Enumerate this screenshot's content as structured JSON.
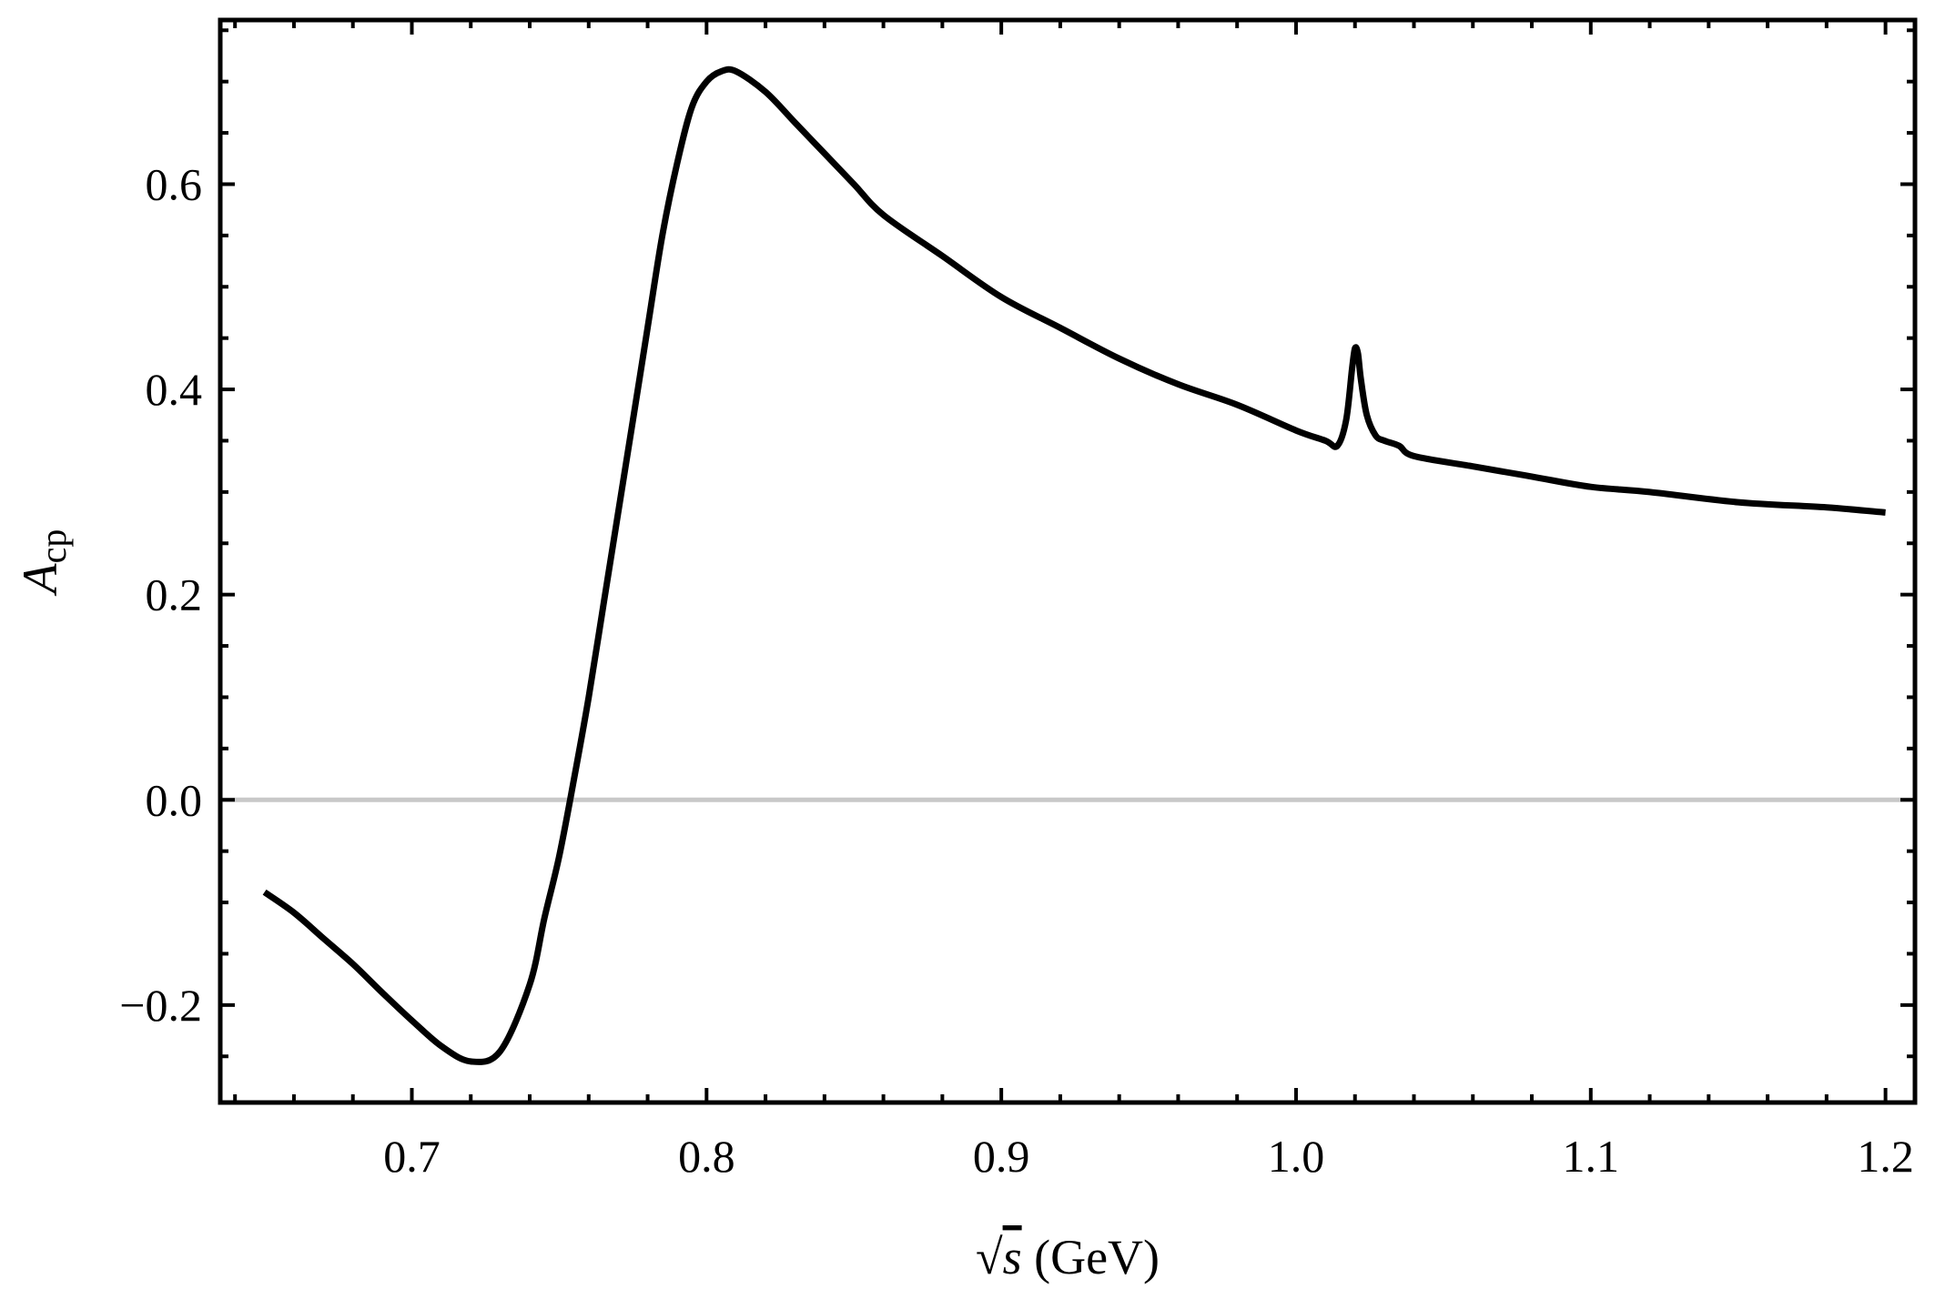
{
  "chart_data": {
    "type": "line",
    "title": "",
    "xlabel": {
      "radical": "√",
      "var": "s",
      "unit": " (GeV)"
    },
    "ylabel": {
      "main": "A",
      "sub": "cp"
    },
    "xlim": [
      0.635,
      1.21
    ],
    "ylim": [
      -0.295,
      0.76
    ],
    "xticks": [
      {
        "value": 0.7,
        "label": "0.7"
      },
      {
        "value": 0.8,
        "label": "0.8"
      },
      {
        "value": 0.9,
        "label": "0.9"
      },
      {
        "value": 1.0,
        "label": "1.0"
      },
      {
        "value": 1.1,
        "label": "1.1"
      },
      {
        "value": 1.2,
        "label": "1.2"
      }
    ],
    "yticks": [
      {
        "value": -0.2,
        "label": "−0.2"
      },
      {
        "value": 0.0,
        "label": "0.0"
      },
      {
        "value": 0.2,
        "label": "0.2"
      },
      {
        "value": 0.4,
        "label": "0.4"
      },
      {
        "value": 0.6,
        "label": "0.6"
      }
    ],
    "grid": false,
    "zero_line": true,
    "series": [
      {
        "color": "#000000",
        "x": [
          0.65,
          0.66,
          0.67,
          0.68,
          0.69,
          0.7,
          0.71,
          0.72,
          0.73,
          0.74,
          0.745,
          0.75,
          0.755,
          0.76,
          0.765,
          0.77,
          0.775,
          0.78,
          0.785,
          0.79,
          0.795,
          0.8,
          0.805,
          0.81,
          0.82,
          0.83,
          0.84,
          0.85,
          0.86,
          0.88,
          0.9,
          0.92,
          0.94,
          0.96,
          0.98,
          1.0,
          1.01,
          1.014,
          1.017,
          1.019,
          1.02,
          1.021,
          1.022,
          1.024,
          1.027,
          1.03,
          1.035,
          1.04,
          1.06,
          1.08,
          1.1,
          1.12,
          1.15,
          1.18,
          1.2
        ],
        "y": [
          -0.09,
          -0.11,
          -0.135,
          -0.16,
          -0.188,
          -0.215,
          -0.24,
          -0.255,
          -0.245,
          -0.18,
          -0.115,
          -0.055,
          0.02,
          0.1,
          0.19,
          0.28,
          0.37,
          0.46,
          0.55,
          0.62,
          0.675,
          0.7,
          0.71,
          0.71,
          0.69,
          0.66,
          0.63,
          0.6,
          0.57,
          0.53,
          0.49,
          0.46,
          0.43,
          0.405,
          0.385,
          0.36,
          0.35,
          0.345,
          0.37,
          0.42,
          0.44,
          0.435,
          0.41,
          0.375,
          0.355,
          0.35,
          0.345,
          0.335,
          0.325,
          0.315,
          0.305,
          0.3,
          0.29,
          0.285,
          0.28
        ]
      }
    ]
  }
}
